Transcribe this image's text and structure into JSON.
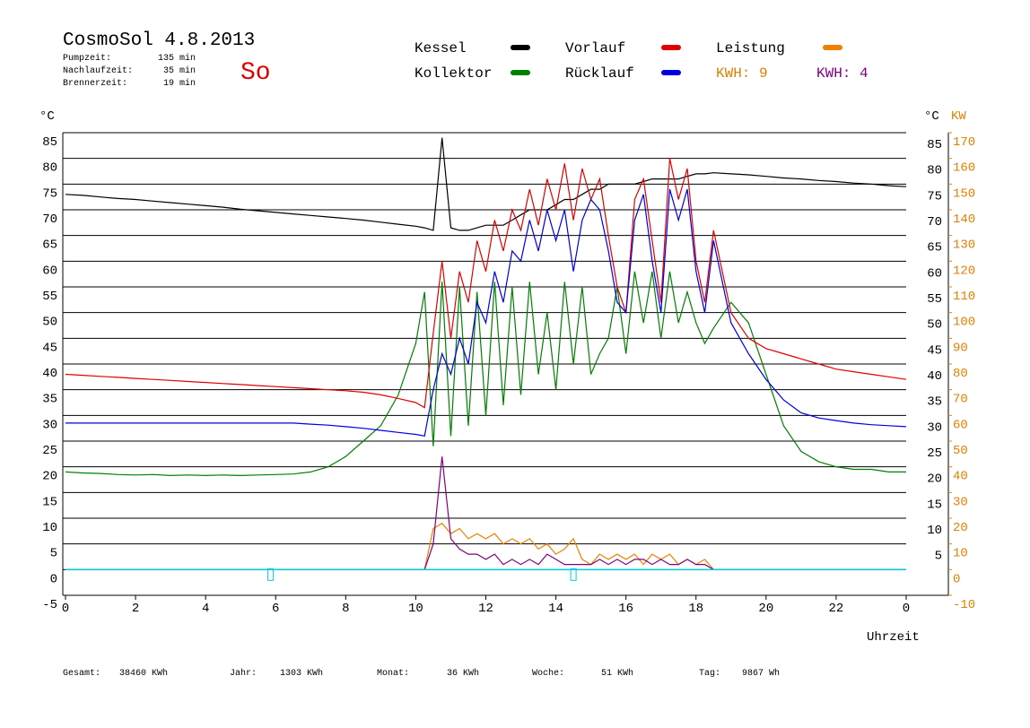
{
  "chart_data": {
    "type": "line",
    "title": "CosmoSol 4.8.2013",
    "day": "So",
    "info": [
      {
        "label": "Pumpzeit:",
        "value": "135 min"
      },
      {
        "label": "Nachlaufzeit:",
        "value": "35 min"
      },
      {
        "label": "Brennerzeit:",
        "value": "19 min"
      }
    ],
    "kwh": [
      {
        "label": "KWH: 9",
        "color": "#e08000"
      },
      {
        "label": "KWH: 4",
        "color": "#800080"
      }
    ],
    "ylabel": "°C",
    "y2label": "KW",
    "xlabel": "Uhrzeit",
    "xlim": [
      0,
      24
    ],
    "xticks": [
      0,
      2,
      4,
      6,
      8,
      10,
      12,
      14,
      16,
      18,
      20,
      22,
      {
        "value": 24,
        "label": "0"
      }
    ],
    "ylim": [
      -5,
      85
    ],
    "yticks": [
      -5,
      0,
      5,
      10,
      15,
      20,
      25,
      30,
      35,
      40,
      45,
      50,
      55,
      60,
      65,
      70,
      75,
      80,
      85
    ],
    "y2lim": [
      -10,
      170
    ],
    "y2ticks": [
      -10,
      0,
      10,
      20,
      30,
      40,
      50,
      60,
      70,
      80,
      90,
      100,
      110,
      120,
      130,
      140,
      150,
      160,
      170
    ],
    "grid": true,
    "x": [
      0,
      0.5,
      1,
      1.5,
      2,
      2.5,
      3,
      3.5,
      4,
      4.5,
      5,
      5.5,
      6,
      6.5,
      7,
      7.5,
      8,
      8.5,
      9,
      9.5,
      10,
      10.25,
      10.5,
      10.75,
      11,
      11.25,
      11.5,
      11.75,
      12,
      12.25,
      12.5,
      12.75,
      13,
      13.25,
      13.5,
      13.75,
      14,
      14.25,
      14.5,
      14.75,
      15,
      15.25,
      15.5,
      15.75,
      16,
      16.25,
      16.5,
      16.75,
      17,
      17.25,
      17.5,
      17.75,
      18,
      18.25,
      18.5,
      19,
      19.5,
      20,
      20.5,
      21,
      21.5,
      22,
      22.5,
      23,
      23.5,
      24
    ],
    "series": [
      {
        "name": "Kessel",
        "color": "#000000",
        "values": [
          73,
          72.8,
          72.5,
          72.2,
          72,
          71.7,
          71.4,
          71.1,
          70.8,
          70.5,
          70.1,
          69.8,
          69.5,
          69.2,
          68.9,
          68.6,
          68.3,
          68,
          67.6,
          67.2,
          66.8,
          66.5,
          66,
          84,
          66.5,
          66,
          66,
          66.5,
          67,
          67,
          67,
          68,
          69,
          70,
          70,
          70,
          71,
          72,
          72,
          73,
          74,
          74,
          75,
          75,
          75,
          75,
          75.5,
          76,
          76,
          76,
          76,
          76.5,
          77,
          77,
          77.2,
          77,
          76.8,
          76.5,
          76.2,
          76,
          75.7,
          75.5,
          75.2,
          75,
          74.7,
          74.5
        ]
      },
      {
        "name": "Kollektor",
        "color": "#008000",
        "values": [
          19,
          18.8,
          18.7,
          18.5,
          18.4,
          18.5,
          18.3,
          18.4,
          18.3,
          18.4,
          18.3,
          18.4,
          18.5,
          18.6,
          19,
          20,
          22,
          25,
          28,
          34,
          44,
          54,
          24,
          56,
          26,
          55,
          28,
          54,
          30,
          56,
          32,
          55,
          34,
          56,
          38,
          50,
          35,
          56,
          40,
          55,
          38,
          42,
          45,
          55,
          42,
          58,
          48,
          58,
          45,
          58,
          48,
          54,
          48,
          44,
          47,
          52,
          48,
          38,
          28,
          23,
          21,
          20,
          19.5,
          19.5,
          19,
          19
        ]
      },
      {
        "name": "Vorlauf",
        "color": "#e00000",
        "values": [
          38,
          37.8,
          37.6,
          37.4,
          37.2,
          37,
          36.8,
          36.6,
          36.4,
          36.2,
          36,
          35.8,
          35.6,
          35.4,
          35.2,
          35,
          34.8,
          34.5,
          34,
          33.3,
          32.5,
          31.5,
          46,
          60,
          45,
          58,
          52,
          64,
          58,
          68,
          62,
          70,
          66,
          74,
          67,
          76,
          70,
          79,
          68,
          78,
          72,
          76,
          65,
          55,
          50,
          72,
          76,
          64,
          52,
          80,
          72,
          78,
          60,
          52,
          66,
          50,
          45,
          43,
          42,
          41,
          40,
          39,
          38.5,
          38,
          37.5,
          37
        ]
      },
      {
        "name": "Rücklauf",
        "color": "#0000e0",
        "values": [
          28.5,
          28.5,
          28.5,
          28.5,
          28.5,
          28.5,
          28.5,
          28.5,
          28.5,
          28.5,
          28.5,
          28.5,
          28.5,
          28.5,
          28.3,
          28.1,
          27.8,
          27.5,
          27.1,
          26.7,
          26.3,
          26,
          35,
          42,
          38,
          45,
          40,
          52,
          48,
          58,
          52,
          62,
          60,
          68,
          62,
          70,
          64,
          70,
          58,
          68,
          72,
          70,
          62,
          52,
          50,
          68,
          73,
          60,
          50,
          74,
          68,
          74,
          58,
          50,
          64,
          48,
          42,
          37,
          33,
          30.5,
          29.5,
          29,
          28.5,
          28.2,
          28,
          27.8
        ]
      },
      {
        "name": "Leistung",
        "color": "#f08000",
        "axis": "y2",
        "values": [
          0,
          0,
          0,
          0,
          0,
          0,
          0,
          0,
          0,
          0,
          0,
          0,
          0,
          0,
          0,
          0,
          0,
          0,
          0,
          0,
          0,
          0,
          16,
          18,
          14,
          16,
          12,
          14,
          12,
          14,
          10,
          12,
          10,
          12,
          8,
          10,
          6,
          8,
          12,
          4,
          2,
          6,
          4,
          6,
          4,
          6,
          2,
          6,
          4,
          6,
          2,
          4,
          2,
          4,
          0,
          0,
          0,
          0,
          0,
          0,
          0,
          0,
          0,
          0,
          0,
          0
        ]
      },
      {
        "color": "#800080",
        "axis": "y2",
        "values": [
          0,
          0,
          0,
          0,
          0,
          0,
          0,
          0,
          0,
          0,
          0,
          0,
          0,
          0,
          0,
          0,
          0,
          0,
          0,
          0,
          0,
          0,
          10,
          44,
          12,
          8,
          6,
          6,
          4,
          6,
          2,
          4,
          2,
          4,
          2,
          6,
          4,
          2,
          2,
          2,
          2,
          4,
          2,
          4,
          2,
          4,
          4,
          2,
          4,
          2,
          2,
          4,
          2,
          2,
          0,
          0,
          0,
          0,
          0,
          0,
          0,
          0,
          0,
          0,
          0,
          0
        ]
      }
    ],
    "status": {
      "color": "#00d0e0",
      "x": [
        0,
        24
      ],
      "values": [
        0,
        0
      ],
      "markers_x": [
        5.85,
        14.5
      ]
    },
    "totals": [
      {
        "label": "Gesamt:",
        "value": "38460 KWh"
      },
      {
        "label": "Jahr:",
        "value": "1303 KWh"
      },
      {
        "label": "Monat:",
        "value": "36 KWh"
      },
      {
        "label": "Woche:",
        "value": "51 KWh"
      },
      {
        "label": "Tag:",
        "value": "9867 Wh"
      }
    ]
  }
}
